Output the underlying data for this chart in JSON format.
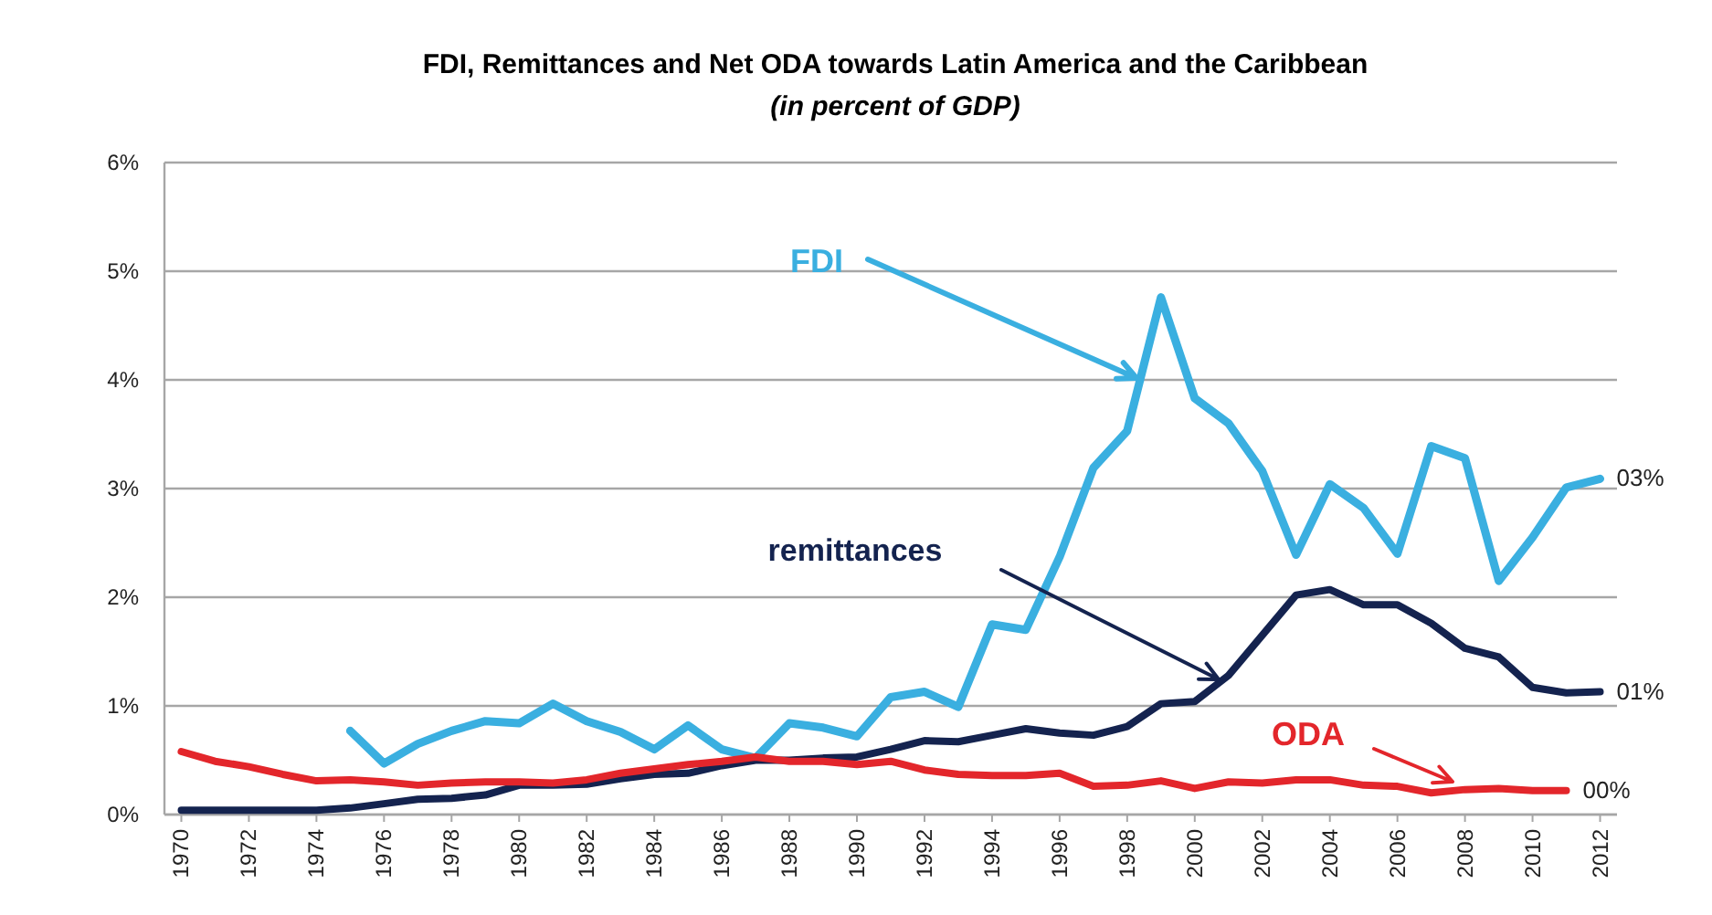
{
  "chart_data": {
    "type": "line",
    "title": "FDI, Remittances and Net ODA towards Latin America and the Caribbean",
    "subtitle": "(in percent of GDP)",
    "x": [
      1970,
      1971,
      1972,
      1973,
      1974,
      1975,
      1976,
      1977,
      1978,
      1979,
      1980,
      1981,
      1982,
      1983,
      1984,
      1985,
      1986,
      1987,
      1988,
      1989,
      1990,
      1991,
      1992,
      1993,
      1994,
      1995,
      1996,
      1997,
      1998,
      1999,
      2000,
      2001,
      2002,
      2003,
      2004,
      2005,
      2006,
      2007,
      2008,
      2009,
      2010,
      2011,
      2012
    ],
    "xlim": [
      1969.5,
      2012.5
    ],
    "xticks": [
      1970,
      1972,
      1974,
      1976,
      1978,
      1980,
      1982,
      1984,
      1986,
      1988,
      1990,
      1992,
      1994,
      1996,
      1998,
      2000,
      2002,
      2004,
      2006,
      2008,
      2010,
      2012
    ],
    "ylim": [
      0,
      6
    ],
    "yticks": [
      {
        "value": 0,
        "label": "0%"
      },
      {
        "value": 1,
        "label": "1%"
      },
      {
        "value": 2,
        "label": "2%"
      },
      {
        "value": 3,
        "label": "3%"
      },
      {
        "value": 4,
        "label": "4%"
      },
      {
        "value": 5,
        "label": "5%"
      },
      {
        "value": 6,
        "label": "6%"
      }
    ],
    "grid": "y",
    "legend": false,
    "marker": "none",
    "line_style": "solid",
    "series": [
      {
        "name": "FDI",
        "color": "#3aafe0",
        "values": [
          null,
          null,
          null,
          null,
          null,
          0.77,
          0.47,
          0.65,
          0.77,
          0.86,
          0.84,
          1.02,
          0.86,
          0.76,
          0.6,
          0.82,
          0.6,
          0.52,
          0.84,
          0.8,
          0.72,
          1.08,
          1.13,
          0.99,
          1.75,
          1.7,
          2.37,
          3.19,
          3.53,
          4.76,
          3.83,
          3.6,
          3.16,
          2.39,
          3.04,
          2.82,
          2.4,
          3.39,
          3.28,
          2.15,
          2.55,
          3.01,
          3.09
        ]
      },
      {
        "name": "remittances",
        "color": "#14234f",
        "values": [
          0.04,
          0.04,
          0.04,
          0.04,
          0.04,
          0.06,
          0.1,
          0.14,
          0.15,
          0.18,
          0.27,
          0.27,
          0.28,
          0.33,
          0.37,
          0.38,
          0.45,
          0.5,
          0.5,
          0.52,
          0.53,
          0.6,
          0.68,
          0.67,
          0.73,
          0.79,
          0.75,
          0.73,
          0.81,
          1.02,
          1.04,
          1.28,
          1.65,
          2.02,
          2.07,
          1.93,
          1.93,
          1.76,
          1.53,
          1.45,
          1.17,
          1.12,
          1.13
        ]
      },
      {
        "name": "ODA",
        "color": "#e3262b",
        "values": [
          0.58,
          0.49,
          0.44,
          0.37,
          0.31,
          0.32,
          0.3,
          0.27,
          0.29,
          0.3,
          0.3,
          0.29,
          0.32,
          0.38,
          0.42,
          0.46,
          0.49,
          0.53,
          0.49,
          0.49,
          0.46,
          0.49,
          0.41,
          0.37,
          0.36,
          0.36,
          0.38,
          0.26,
          0.27,
          0.31,
          0.24,
          0.3,
          0.29,
          0.32,
          0.32,
          0.27,
          0.26,
          0.2,
          0.23,
          0.24,
          0.22,
          0.22,
          null
        ]
      }
    ],
    "annotations": [
      "03%",
      "01%",
      "00%"
    ]
  }
}
